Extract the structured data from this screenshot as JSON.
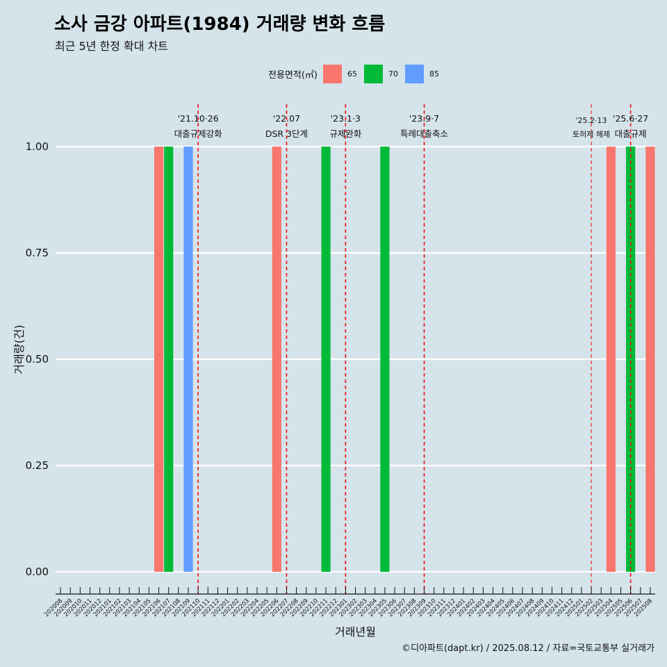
{
  "title": "소사 금강 아파트(1984) 거래량 변화 흐름",
  "subtitle": "최근 5년 한정 확대 차트",
  "caption": "©디아파트(dapt.kr) / 2025.08.12 / 자료=국토교통부 실거래가",
  "legend": {
    "title": "전용면적(㎡)",
    "items": [
      {
        "label": "65",
        "color": "#f8766d"
      },
      {
        "label": "70",
        "color": "#00ba38"
      },
      {
        "label": "85",
        "color": "#619cff"
      }
    ]
  },
  "chart_data": {
    "type": "bar",
    "title": "소사 금강 아파트(1984) 거래량 변화 흐름",
    "xlabel": "거래년월",
    "ylabel": "거래량(건)",
    "ylim": [
      0,
      1
    ],
    "yticks": [
      "0.00",
      "0.25",
      "0.50",
      "0.75",
      "1.00"
    ],
    "categories": [
      "202008",
      "202009",
      "202010",
      "202011",
      "202012",
      "202101",
      "202102",
      "202103",
      "202104",
      "202105",
      "202106",
      "202107",
      "202108",
      "202109",
      "202110",
      "202111",
      "202112",
      "202201",
      "202202",
      "202203",
      "202204",
      "202205",
      "202206",
      "202207",
      "202208",
      "202209",
      "202210",
      "202211",
      "202212",
      "202301",
      "202302",
      "202303",
      "202304",
      "202305",
      "202306",
      "202307",
      "202308",
      "202309",
      "202310",
      "202311",
      "202312",
      "202401",
      "202402",
      "202403",
      "202404",
      "202405",
      "202406",
      "202407",
      "202408",
      "202409",
      "202410",
      "202411",
      "202412",
      "202501",
      "202502",
      "202503",
      "202504",
      "202505",
      "202506",
      "202507",
      "202508"
    ],
    "series": [
      {
        "name": "65",
        "color": "#f8766d",
        "points": [
          {
            "x": "202106",
            "y": 1
          },
          {
            "x": "202206",
            "y": 1
          },
          {
            "x": "202504",
            "y": 1
          },
          {
            "x": "202508",
            "y": 1
          }
        ]
      },
      {
        "name": "70",
        "color": "#00ba38",
        "points": [
          {
            "x": "202107",
            "y": 1
          },
          {
            "x": "202211",
            "y": 1
          },
          {
            "x": "202305",
            "y": 1
          },
          {
            "x": "202506",
            "y": 1
          }
        ]
      },
      {
        "name": "85",
        "color": "#619cff",
        "points": [
          {
            "x": "202109",
            "y": 1
          }
        ]
      }
    ],
    "annotations": [
      {
        "x": "202110",
        "label1": "'21.10·26",
        "label2": "대출규제강화",
        "small": false
      },
      {
        "x": "202207",
        "label1": "'22.07",
        "label2": "DSR 3단계",
        "small": false
      },
      {
        "x": "202301",
        "label1": "'23.1·3",
        "label2": "규제완화",
        "small": false
      },
      {
        "x": "202309",
        "label1": "'23.9·7",
        "label2": "특례대출축소",
        "small": false
      },
      {
        "x": "202502",
        "label1": "'25.2·13",
        "label2": "토허제 해제",
        "small": true
      },
      {
        "x": "202506",
        "label1": "'25.6·27",
        "label2": "대출규제",
        "small": false
      }
    ]
  }
}
